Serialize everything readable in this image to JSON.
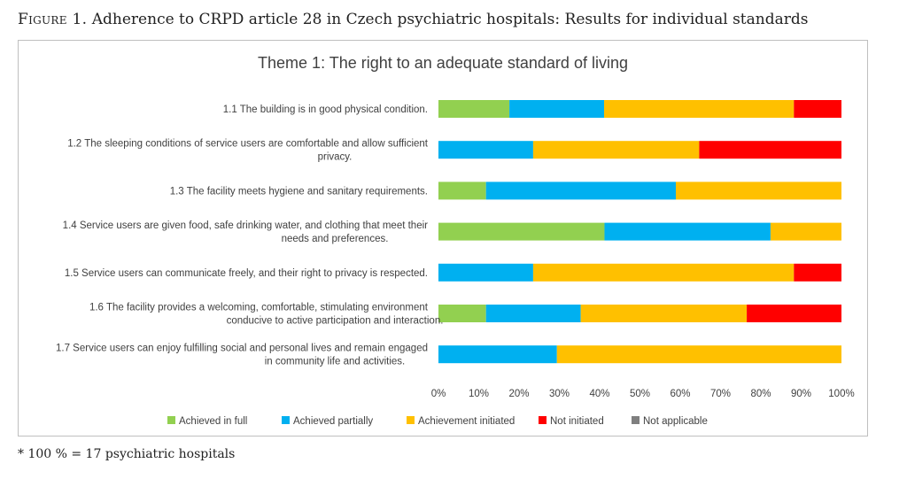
{
  "caption": {
    "figure_label": "Figure 1.",
    "text": "Adherence to CRPD article 28 in Czech psychiatric hospitals: Results for individual standards"
  },
  "footnote": "* 100 % = 17 psychiatric hospitals",
  "chart_data": {
    "type": "bar",
    "orientation": "horizontal",
    "stacked": "percent",
    "title": "Theme 1: The right to an adequate standard of living",
    "categories": [
      [
        "1.1 The building is in good physical condition."
      ],
      [
        "1.2 The sleeping conditions of service users are comfortable and allow sufficient",
        "privacy."
      ],
      [
        "1.3 The facility meets hygiene and sanitary requirements."
      ],
      [
        "1.4 Service users are given food, safe drinking water, and clothing that meet their",
        "needs and preferences."
      ],
      [
        "1.5 Service users can communicate freely, and their right to privacy is respected."
      ],
      [
        "1.6 The facility provides a welcoming, comfortable, stimulating environment",
        "conducive to active participation and interaction."
      ],
      [
        "1.7 Service users can enjoy fulfilling social and personal lives and remain engaged",
        "in community life and activities."
      ]
    ],
    "series": [
      {
        "name": "Achieved in full",
        "color": "#92d050",
        "values": [
          17.6,
          0,
          11.8,
          41.2,
          0,
          11.8,
          0
        ]
      },
      {
        "name": "Achieved partially",
        "color": "#00b0f0",
        "values": [
          23.5,
          23.5,
          47.1,
          41.2,
          23.5,
          23.5,
          29.4
        ]
      },
      {
        "name": "Achievement initiated",
        "color": "#ffc000",
        "values": [
          47.1,
          41.2,
          41.1,
          17.6,
          64.7,
          41.2,
          70.6
        ]
      },
      {
        "name": "Not initiated",
        "color": "#ff0000",
        "values": [
          11.8,
          35.3,
          0,
          0,
          11.8,
          23.5,
          0
        ]
      },
      {
        "name": "Not applicable",
        "color": "#7f7f7f",
        "values": [
          0,
          0,
          0,
          0,
          0,
          0,
          0
        ]
      }
    ],
    "xlim": [
      0,
      100
    ],
    "xticks": [
      "0%",
      "10%",
      "20%",
      "30%",
      "40%",
      "50%",
      "60%",
      "70%",
      "80%",
      "90%",
      "100%"
    ],
    "grid": false,
    "legend_position": "bottom"
  }
}
